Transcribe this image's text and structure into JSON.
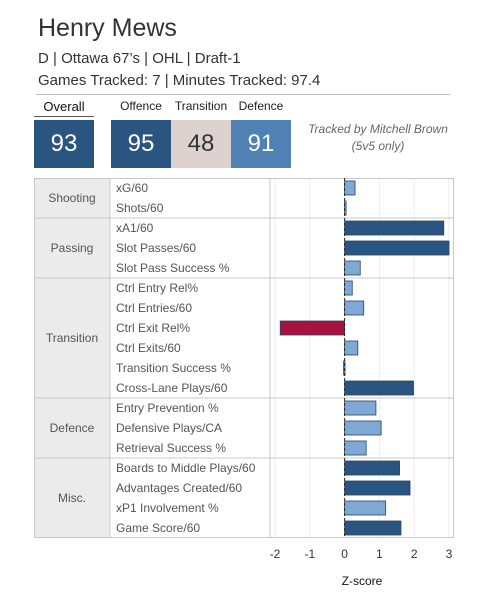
{
  "header": {
    "name": "Henry Mews",
    "info": "D | Ottawa 67’s | OHL | Draft-1",
    "tracking": "Games Tracked: 7 | Minutes Tracked: 97.4"
  },
  "summary": {
    "overall_label": "Overall",
    "overall_value": "93",
    "offence_label": "Offence",
    "offence_value": "95",
    "transition_label": "Transition",
    "transition_value": "48",
    "defence_label": "Defence",
    "defence_value": "91",
    "tracked_by": "Tracked by Mitchell Brown",
    "tracked_scope": "(5v5 only)"
  },
  "colors": {
    "tile_dark_blue": "#2a5580",
    "tile_light_blue": "#5080b4",
    "tile_neutral": "#ddd2cf",
    "bar_dark_blue": "#2a5580",
    "bar_light_blue": "#80a8d4",
    "bar_red": "#a8123e",
    "group_label_bg": "#ebebeb"
  },
  "chart_data": {
    "type": "bar",
    "orientation": "horizontal",
    "xlabel": "Z-score",
    "xlim": [
      -2,
      3
    ],
    "xticks": [
      "-2",
      "-1",
      "0",
      "1",
      "2",
      "3"
    ],
    "groups": [
      {
        "name": "Shooting",
        "metrics": [
          {
            "label": "xG/60",
            "value": 0.3
          },
          {
            "label": "Shots/60",
            "value": 0.03
          }
        ]
      },
      {
        "name": "Passing",
        "metrics": [
          {
            "label": "xA1/60",
            "value": 2.85
          },
          {
            "label": "Slot Passes/60",
            "value": 3.0
          },
          {
            "label": "Slot Pass Success %",
            "value": 0.45
          }
        ]
      },
      {
        "name": "Transition",
        "metrics": [
          {
            "label": "Ctrl Entry Rel%",
            "value": 0.22
          },
          {
            "label": "Ctrl Entries/60",
            "value": 0.55
          },
          {
            "label": "Ctrl Exit Rel%",
            "value": -1.85
          },
          {
            "label": "Ctrl Exits/60",
            "value": 0.38
          },
          {
            "label": "Transition Success %",
            "value": -0.03
          },
          {
            "label": "Cross-Lane Plays/60",
            "value": 1.98
          }
        ]
      },
      {
        "name": "Defence",
        "metrics": [
          {
            "label": "Entry Prevention %",
            "value": 0.9
          },
          {
            "label": "Defensive Plays/CA",
            "value": 1.05
          },
          {
            "label": "Retrieval Success %",
            "value": 0.62
          }
        ]
      },
      {
        "name": "Misc.",
        "metrics": [
          {
            "label": "Boards to Middle Plays/60",
            "value": 1.58
          },
          {
            "label": "Advantages Created/60",
            "value": 1.88
          },
          {
            "label": "xP1 Involvement %",
            "value": 1.18
          },
          {
            "label": "Game Score/60",
            "value": 1.62
          }
        ]
      }
    ]
  }
}
